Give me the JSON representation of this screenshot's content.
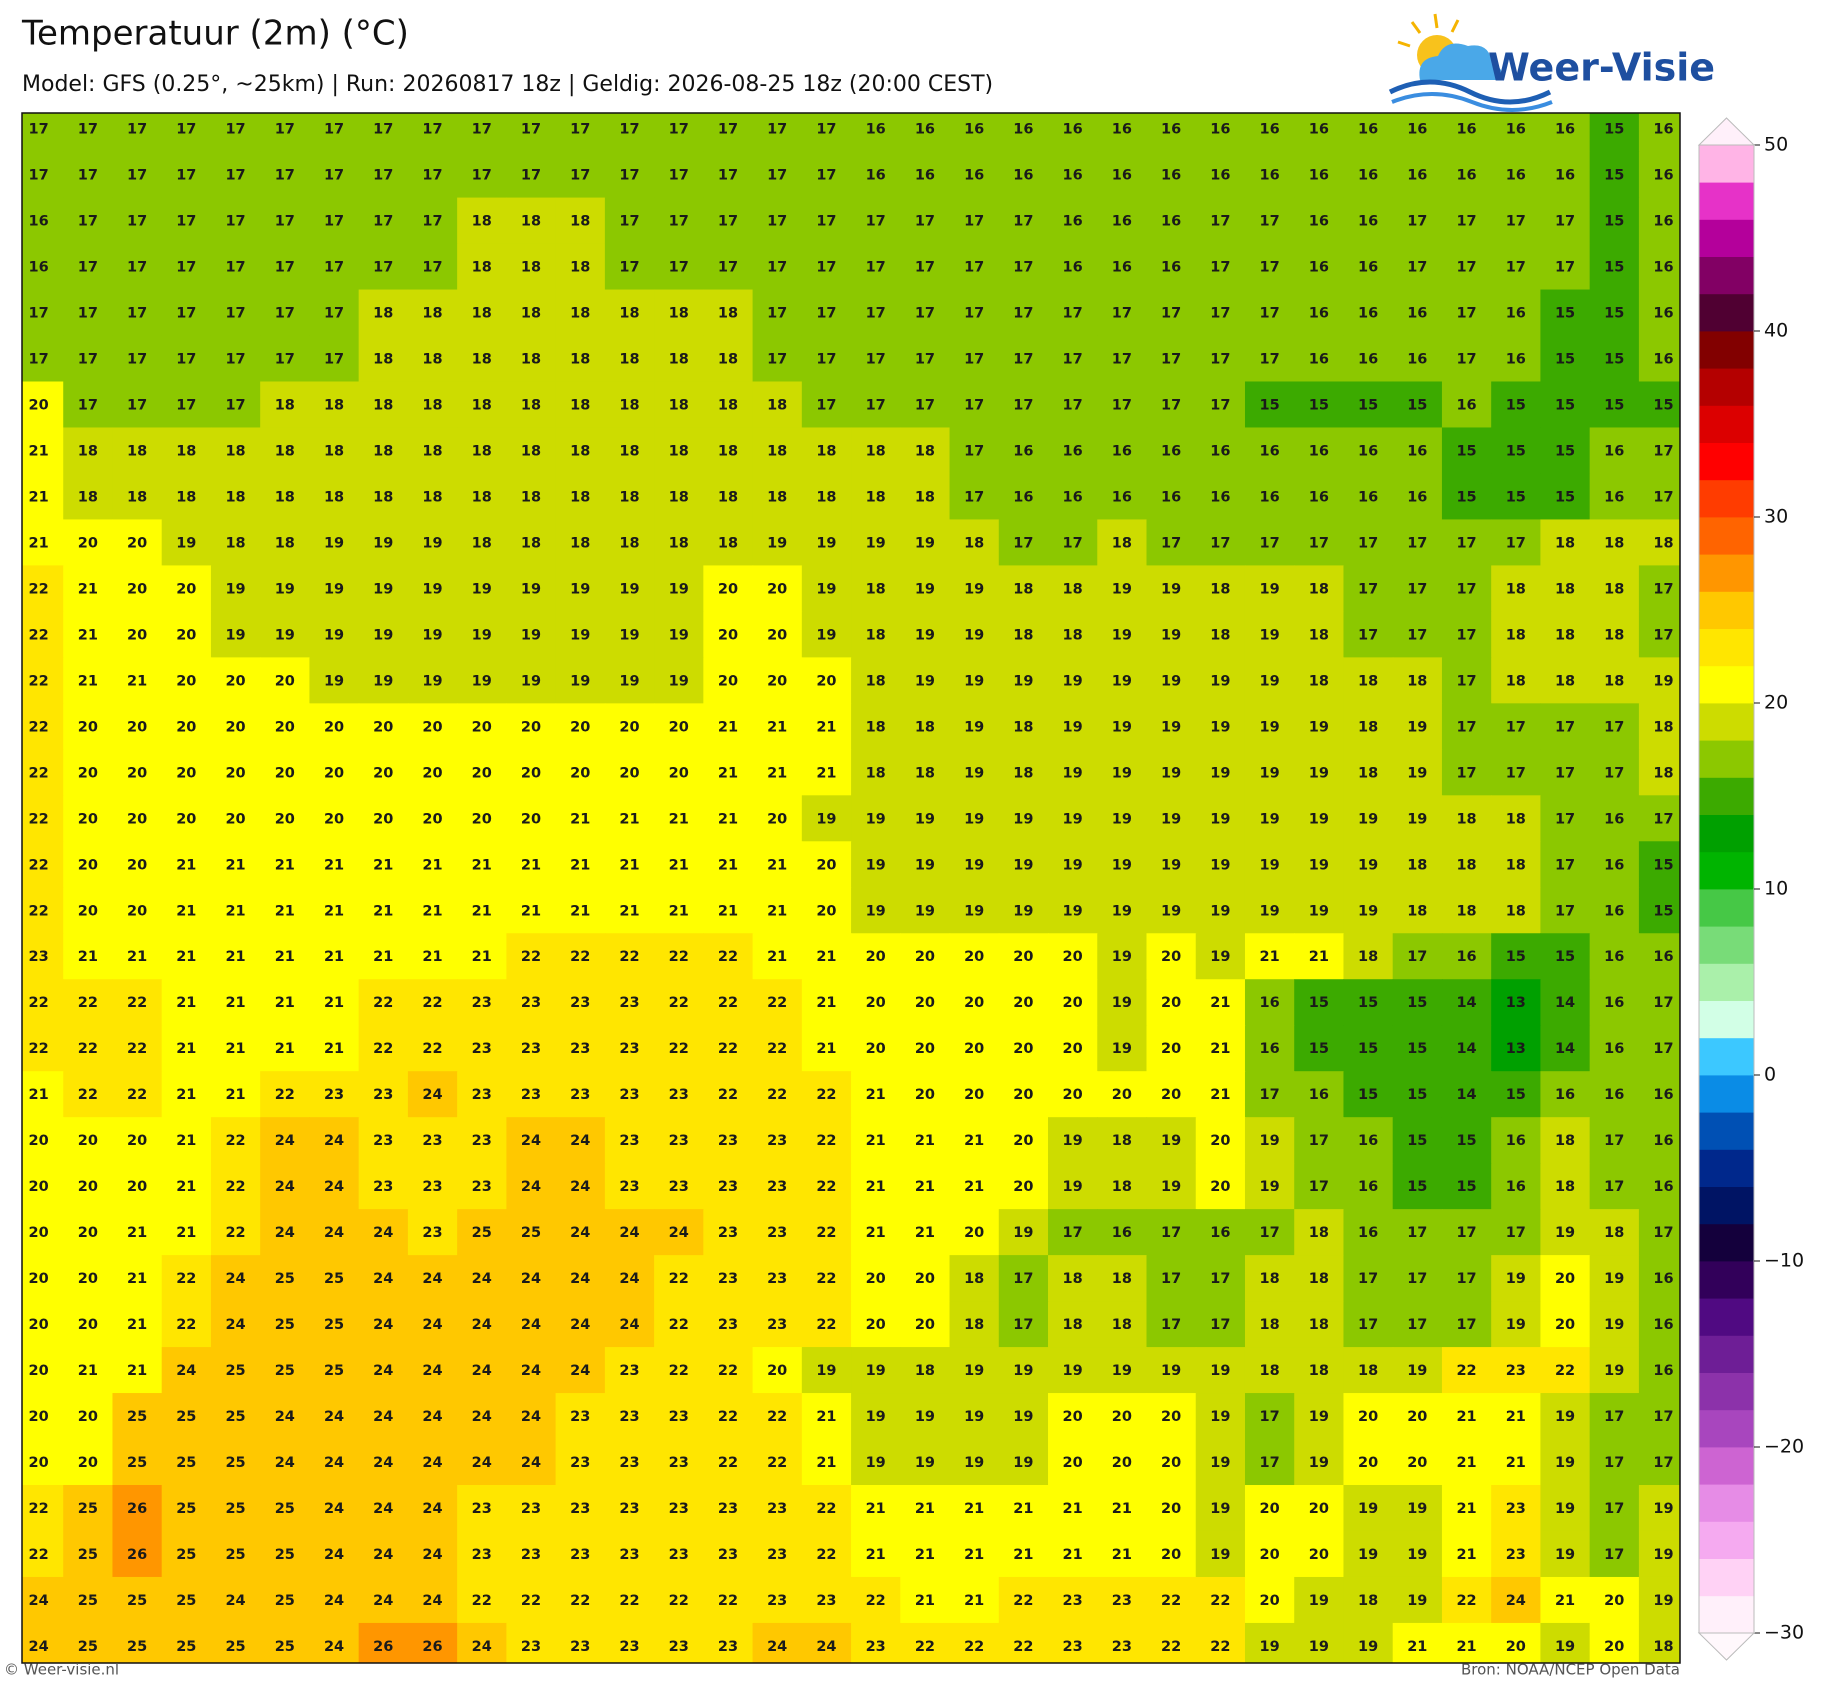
{
  "header": {
    "title": "Temperatuur (2m) (°C)",
    "subtitle": "Model: GFS (0.25°, ~25km)  |  Run: 20260817 18z  |  Geldig: 2026-08-25 18z (20:00 CEST)",
    "logo": "Weer-Visie"
  },
  "grid": {
    "rows": [
      [
        17,
        17,
        17,
        17,
        17,
        17,
        17,
        17,
        17,
        17,
        17,
        17,
        17,
        17,
        17,
        17,
        17,
        16,
        16,
        16,
        16,
        16,
        16,
        16,
        16,
        16,
        16,
        16,
        16,
        16,
        16,
        16,
        15,
        16
      ],
      [
        17,
        17,
        17,
        17,
        17,
        17,
        17,
        17,
        17,
        17,
        17,
        17,
        17,
        17,
        17,
        17,
        17,
        16,
        16,
        16,
        16,
        16,
        16,
        16,
        16,
        16,
        16,
        16,
        16,
        16,
        16,
        16,
        15,
        16
      ],
      [
        16,
        17,
        17,
        17,
        17,
        17,
        17,
        17,
        17,
        18,
        18,
        18,
        17,
        17,
        17,
        17,
        17,
        17,
        17,
        17,
        17,
        16,
        16,
        16,
        17,
        17,
        16,
        16,
        17,
        17,
        17,
        17,
        15,
        16
      ],
      [
        16,
        17,
        17,
        17,
        17,
        17,
        17,
        17,
        17,
        18,
        18,
        18,
        17,
        17,
        17,
        17,
        17,
        17,
        17,
        17,
        17,
        16,
        16,
        16,
        17,
        17,
        16,
        16,
        17,
        17,
        17,
        17,
        15,
        16
      ],
      [
        17,
        17,
        17,
        17,
        17,
        17,
        17,
        18,
        18,
        18,
        18,
        18,
        18,
        18,
        18,
        17,
        17,
        17,
        17,
        17,
        17,
        17,
        17,
        17,
        17,
        17,
        16,
        16,
        16,
        17,
        16,
        15,
        15,
        16
      ],
      [
        17,
        17,
        17,
        17,
        17,
        17,
        17,
        18,
        18,
        18,
        18,
        18,
        18,
        18,
        18,
        17,
        17,
        17,
        17,
        17,
        17,
        17,
        17,
        17,
        17,
        17,
        16,
        16,
        16,
        17,
        16,
        15,
        15,
        16
      ],
      [
        20,
        17,
        17,
        17,
        17,
        18,
        18,
        18,
        18,
        18,
        18,
        18,
        18,
        18,
        18,
        18,
        17,
        17,
        17,
        17,
        17,
        17,
        17,
        17,
        17,
        15,
        15,
        15,
        15,
        16,
        15,
        15,
        15,
        15
      ],
      [
        21,
        18,
        18,
        18,
        18,
        18,
        18,
        18,
        18,
        18,
        18,
        18,
        18,
        18,
        18,
        18,
        18,
        18,
        18,
        17,
        16,
        16,
        16,
        16,
        16,
        16,
        16,
        16,
        16,
        15,
        15,
        15,
        16,
        17
      ],
      [
        21,
        18,
        18,
        18,
        18,
        18,
        18,
        18,
        18,
        18,
        18,
        18,
        18,
        18,
        18,
        18,
        18,
        18,
        18,
        17,
        16,
        16,
        16,
        16,
        16,
        16,
        16,
        16,
        16,
        15,
        15,
        15,
        16,
        17
      ],
      [
        21,
        20,
        20,
        19,
        18,
        18,
        19,
        19,
        19,
        18,
        18,
        18,
        18,
        18,
        18,
        19,
        19,
        19,
        19,
        18,
        17,
        17,
        18,
        17,
        17,
        17,
        17,
        17,
        17,
        17,
        17,
        18,
        18,
        18
      ],
      [
        22,
        21,
        20,
        20,
        19,
        19,
        19,
        19,
        19,
        19,
        19,
        19,
        19,
        19,
        20,
        20,
        19,
        18,
        19,
        19,
        18,
        18,
        19,
        19,
        18,
        19,
        18,
        17,
        17,
        17,
        18,
        18,
        18,
        17
      ],
      [
        22,
        21,
        20,
        20,
        19,
        19,
        19,
        19,
        19,
        19,
        19,
        19,
        19,
        19,
        20,
        20,
        19,
        18,
        19,
        19,
        18,
        18,
        19,
        19,
        18,
        19,
        18,
        17,
        17,
        17,
        18,
        18,
        18,
        17
      ],
      [
        22,
        21,
        21,
        20,
        20,
        20,
        19,
        19,
        19,
        19,
        19,
        19,
        19,
        19,
        20,
        20,
        20,
        18,
        19,
        19,
        19,
        19,
        19,
        19,
        19,
        19,
        18,
        18,
        18,
        17,
        18,
        18,
        18,
        19
      ],
      [
        22,
        20,
        20,
        20,
        20,
        20,
        20,
        20,
        20,
        20,
        20,
        20,
        20,
        20,
        21,
        21,
        21,
        18,
        18,
        19,
        18,
        19,
        19,
        19,
        19,
        19,
        19,
        18,
        19,
        17,
        17,
        17,
        17,
        18
      ],
      [
        22,
        20,
        20,
        20,
        20,
        20,
        20,
        20,
        20,
        20,
        20,
        20,
        20,
        20,
        21,
        21,
        21,
        18,
        18,
        19,
        18,
        19,
        19,
        19,
        19,
        19,
        19,
        18,
        19,
        17,
        17,
        17,
        17,
        18
      ],
      [
        22,
        20,
        20,
        20,
        20,
        20,
        20,
        20,
        20,
        20,
        20,
        21,
        21,
        21,
        21,
        20,
        19,
        19,
        19,
        19,
        19,
        19,
        19,
        19,
        19,
        19,
        19,
        19,
        19,
        18,
        18,
        17,
        16,
        17
      ],
      [
        22,
        20,
        20,
        21,
        21,
        21,
        21,
        21,
        21,
        21,
        21,
        21,
        21,
        21,
        21,
        21,
        20,
        19,
        19,
        19,
        19,
        19,
        19,
        19,
        19,
        19,
        19,
        19,
        18,
        18,
        18,
        17,
        16,
        15
      ],
      [
        22,
        20,
        20,
        21,
        21,
        21,
        21,
        21,
        21,
        21,
        21,
        21,
        21,
        21,
        21,
        21,
        20,
        19,
        19,
        19,
        19,
        19,
        19,
        19,
        19,
        19,
        19,
        19,
        18,
        18,
        18,
        17,
        16,
        15
      ],
      [
        23,
        21,
        21,
        21,
        21,
        21,
        21,
        21,
        21,
        21,
        22,
        22,
        22,
        22,
        22,
        21,
        21,
        20,
        20,
        20,
        20,
        20,
        19,
        20,
        19,
        21,
        21,
        18,
        17,
        16,
        15,
        15,
        16,
        16
      ],
      [
        22,
        22,
        22,
        21,
        21,
        21,
        21,
        22,
        22,
        23,
        23,
        23,
        23,
        22,
        22,
        22,
        21,
        20,
        20,
        20,
        20,
        20,
        19,
        20,
        21,
        16,
        15,
        15,
        15,
        14,
        13,
        14,
        16,
        17
      ],
      [
        22,
        22,
        22,
        21,
        21,
        21,
        21,
        22,
        22,
        23,
        23,
        23,
        23,
        22,
        22,
        22,
        21,
        20,
        20,
        20,
        20,
        20,
        19,
        20,
        21,
        16,
        15,
        15,
        15,
        14,
        13,
        14,
        16,
        17
      ],
      [
        21,
        22,
        22,
        21,
        21,
        22,
        23,
        23,
        24,
        23,
        23,
        23,
        23,
        23,
        22,
        22,
        22,
        21,
        20,
        20,
        20,
        20,
        20,
        20,
        21,
        17,
        16,
        15,
        15,
        14,
        15,
        16,
        16,
        16
      ],
      [
        20,
        20,
        20,
        21,
        22,
        24,
        24,
        23,
        23,
        23,
        24,
        24,
        23,
        23,
        23,
        23,
        22,
        21,
        21,
        21,
        20,
        19,
        18,
        19,
        20,
        19,
        17,
        16,
        15,
        15,
        16,
        18,
        17,
        16
      ],
      [
        20,
        20,
        20,
        21,
        22,
        24,
        24,
        23,
        23,
        23,
        24,
        24,
        23,
        23,
        23,
        23,
        22,
        21,
        21,
        21,
        20,
        19,
        18,
        19,
        20,
        19,
        17,
        16,
        15,
        15,
        16,
        18,
        17,
        16
      ],
      [
        20,
        20,
        21,
        21,
        22,
        24,
        24,
        24,
        23,
        25,
        25,
        24,
        24,
        24,
        23,
        23,
        22,
        21,
        21,
        20,
        19,
        17,
        16,
        17,
        16,
        17,
        18,
        16,
        17,
        17,
        17,
        19,
        18,
        17
      ],
      [
        20,
        20,
        21,
        22,
        24,
        25,
        25,
        24,
        24,
        24,
        24,
        24,
        24,
        22,
        23,
        23,
        22,
        20,
        20,
        18,
        17,
        18,
        18,
        17,
        17,
        18,
        18,
        17,
        17,
        17,
        19,
        20,
        19,
        16
      ],
      [
        20,
        20,
        21,
        22,
        24,
        25,
        25,
        24,
        24,
        24,
        24,
        24,
        24,
        22,
        23,
        23,
        22,
        20,
        20,
        18,
        17,
        18,
        18,
        17,
        17,
        18,
        18,
        17,
        17,
        17,
        19,
        20,
        19,
        16
      ],
      [
        20,
        21,
        21,
        24,
        25,
        25,
        25,
        24,
        24,
        24,
        24,
        24,
        23,
        22,
        22,
        20,
        19,
        19,
        18,
        19,
        19,
        19,
        19,
        19,
        19,
        18,
        18,
        18,
        19,
        22,
        23,
        22,
        19,
        16
      ],
      [
        20,
        20,
        25,
        25,
        25,
        24,
        24,
        24,
        24,
        24,
        24,
        23,
        23,
        23,
        22,
        22,
        21,
        19,
        19,
        19,
        19,
        20,
        20,
        20,
        19,
        17,
        19,
        20,
        20,
        21,
        21,
        19,
        17,
        17
      ],
      [
        20,
        20,
        25,
        25,
        25,
        24,
        24,
        24,
        24,
        24,
        24,
        23,
        23,
        23,
        22,
        22,
        21,
        19,
        19,
        19,
        19,
        20,
        20,
        20,
        19,
        17,
        19,
        20,
        20,
        21,
        21,
        19,
        17,
        17
      ],
      [
        22,
        25,
        26,
        25,
        25,
        25,
        24,
        24,
        24,
        23,
        23,
        23,
        23,
        23,
        23,
        23,
        22,
        21,
        21,
        21,
        21,
        21,
        21,
        20,
        19,
        20,
        20,
        19,
        19,
        21,
        23,
        19,
        17,
        19
      ],
      [
        22,
        25,
        26,
        25,
        25,
        25,
        24,
        24,
        24,
        23,
        23,
        23,
        23,
        23,
        23,
        23,
        22,
        21,
        21,
        21,
        21,
        21,
        21,
        20,
        19,
        20,
        20,
        19,
        19,
        21,
        23,
        19,
        17,
        19
      ],
      [
        24,
        25,
        25,
        25,
        24,
        25,
        24,
        24,
        24,
        22,
        22,
        22,
        22,
        22,
        22,
        23,
        23,
        22,
        21,
        21,
        22,
        23,
        23,
        22,
        22,
        20,
        19,
        18,
        19,
        22,
        24,
        21,
        20,
        19
      ],
      [
        24,
        25,
        25,
        25,
        25,
        25,
        24,
        26,
        26,
        24,
        23,
        23,
        23,
        23,
        23,
        24,
        24,
        23,
        22,
        22,
        22,
        23,
        23,
        22,
        22,
        19,
        19,
        19,
        21,
        21,
        20,
        19,
        20,
        18
      ]
    ]
  },
  "colorbar": {
    "ticks": [
      {
        "value": -30,
        "label": "−30"
      },
      {
        "value": -20,
        "label": "−20"
      },
      {
        "value": -10,
        "label": "−10"
      },
      0,
      10,
      20,
      30,
      40,
      50
    ],
    "colors": [
      "#fff0fa",
      "#ffd2f5",
      "#f5aaf0",
      "#e68ce6",
      "#cd64d2",
      "#a846be",
      "#8c32aa",
      "#6e1e96",
      "#500a82",
      "#32005a",
      "#14003c",
      "#001464",
      "#00288c",
      "#0050b4",
      "#0a8ce6",
      "#3cc8ff",
      "#d2ffe6",
      "#aaf0aa",
      "#78dc78",
      "#46c846",
      "#00b400",
      "#00a000",
      "#3caa00",
      "#8cc800",
      "#cddc00",
      "#ffff00",
      "#ffe600",
      "#ffc800",
      "#ff9600",
      "#ff6400",
      "#ff3c00",
      "#ff0000",
      "#dc0000",
      "#b40000",
      "#820000",
      "#500032",
      "#820064",
      "#b4009b",
      "#e632c8",
      "#ffb4e6"
    ]
  },
  "footer": {
    "left": "© Weer-visie.nl",
    "right": "Bron: NOAA/NCEP Open Data"
  }
}
